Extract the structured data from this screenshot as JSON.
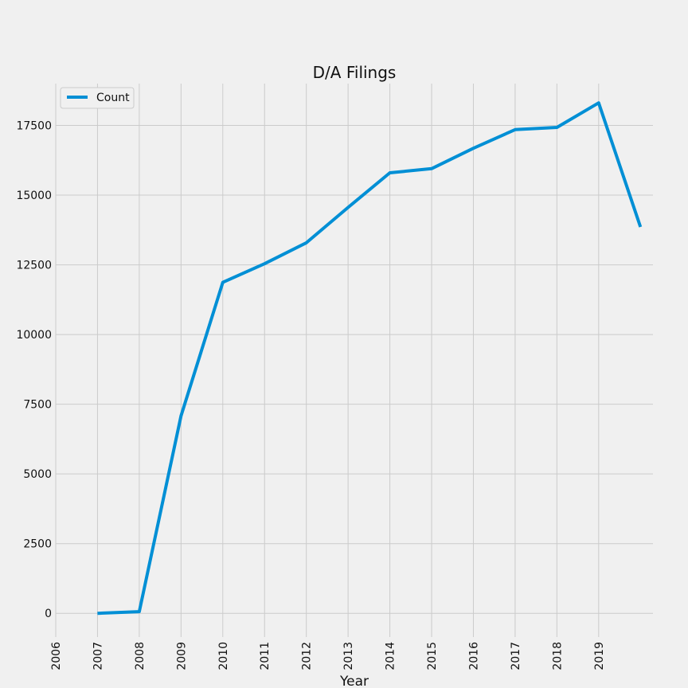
{
  "chart_data": {
    "type": "line",
    "title": "D/A Filings",
    "xlabel": "Year",
    "ylabel": "",
    "x_ticks": [
      "2006",
      "2007",
      "2008",
      "2009",
      "2010",
      "2011",
      "2012",
      "2013",
      "2014",
      "2015",
      "2016",
      "2017",
      "2018",
      "2019"
    ],
    "y_ticks": [
      "0",
      "2500",
      "5000",
      "7500",
      "10000",
      "12500",
      "15000",
      "17500"
    ],
    "xlim": [
      2006,
      2020.3
    ],
    "ylim": [
      -850,
      19000
    ],
    "grid": true,
    "legend": {
      "placement": "top-left",
      "entries": [
        "Count"
      ]
    },
    "series": [
      {
        "name": "Count",
        "color": "#008fd5",
        "points": [
          {
            "x": 2007,
            "y": 0
          },
          {
            "x": 2008,
            "y": 60
          },
          {
            "x": 2009,
            "y": 7080
          },
          {
            "x": 2010,
            "y": 11870
          },
          {
            "x": 2011,
            "y": 12540
          },
          {
            "x": 2012,
            "y": 13290
          },
          {
            "x": 2013,
            "y": 14560
          },
          {
            "x": 2014,
            "y": 15800
          },
          {
            "x": 2015,
            "y": 15950
          },
          {
            "x": 2016,
            "y": 16680
          },
          {
            "x": 2017,
            "y": 17350
          },
          {
            "x": 2018,
            "y": 17430
          },
          {
            "x": 2019,
            "y": 18310
          },
          {
            "x": 2020,
            "y": 13860
          }
        ]
      }
    ]
  }
}
